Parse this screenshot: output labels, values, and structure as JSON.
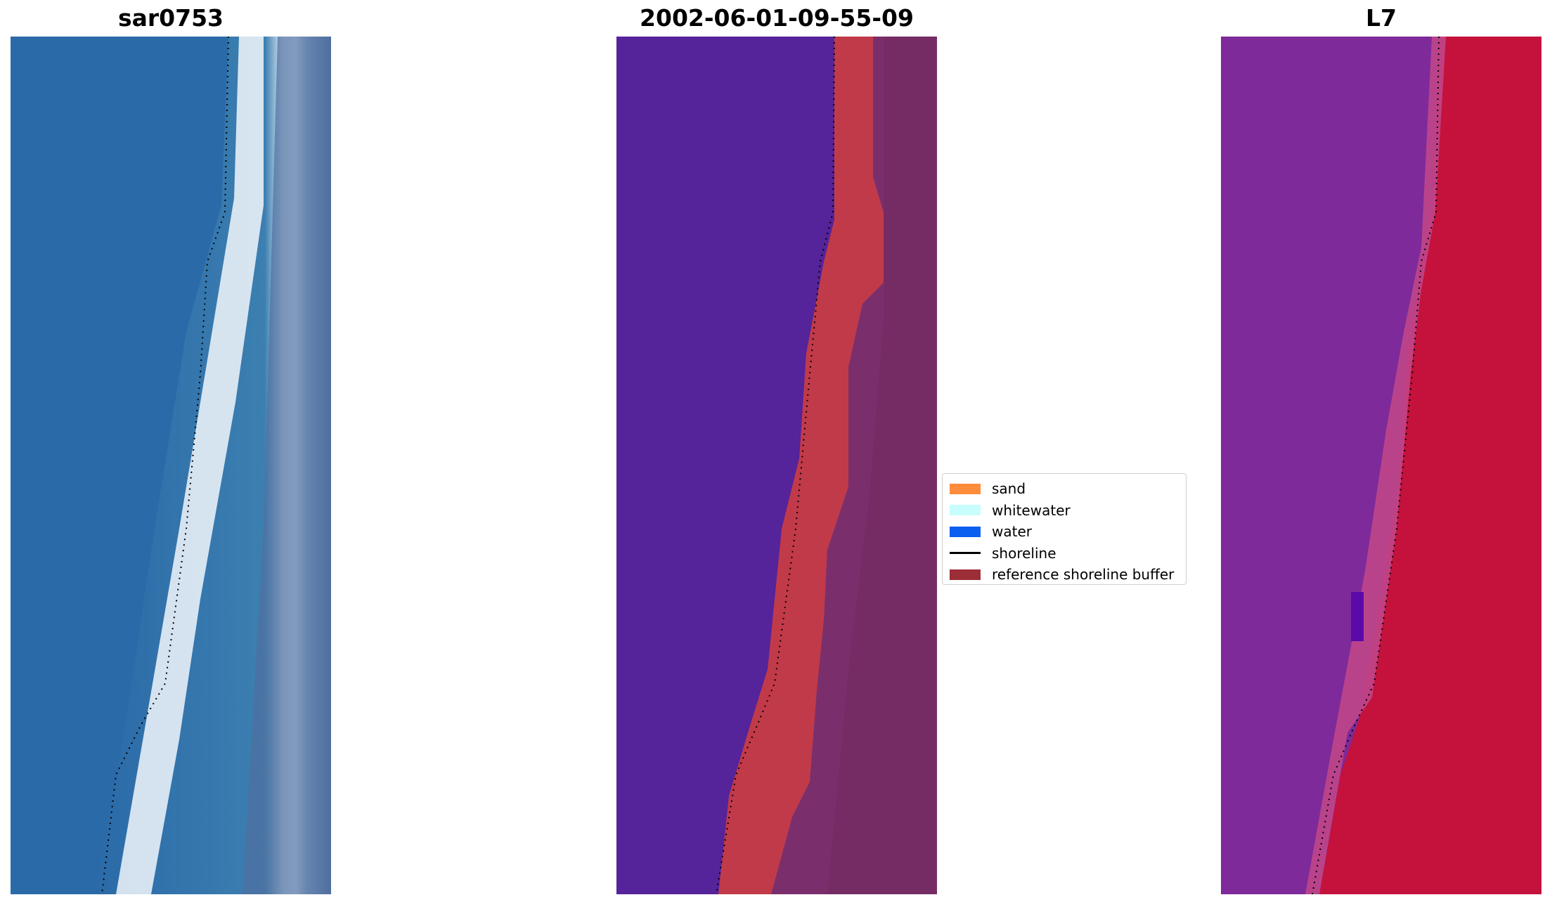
{
  "panels": [
    {
      "title": "sar0753"
    },
    {
      "title": "2002-06-01-09-55-09"
    },
    {
      "title": "L7"
    }
  ],
  "legend": {
    "items": [
      {
        "label": "sand",
        "kind": "patch",
        "color": "#ff8c3a"
      },
      {
        "label": "whitewater",
        "kind": "patch",
        "color": "#c8fdfd"
      },
      {
        "label": "water",
        "kind": "patch",
        "color": "#0a5ef0"
      },
      {
        "label": "shoreline",
        "kind": "line",
        "color": "#000000"
      },
      {
        "label": "reference shoreline buffer",
        "kind": "patch",
        "color": "#9b2e36"
      }
    ]
  },
  "colors": {
    "rgb_water": "#2a6aa8",
    "rgb_whitewater": "#e8f2f8",
    "rgb_land": "#4e6f9e",
    "class_water": "#55239a",
    "class_buffer": "#c13a4a",
    "class_land": "#7a2f6c",
    "ndwi_water": "#7e2a9a",
    "ndwi_land": "#c4123c"
  }
}
